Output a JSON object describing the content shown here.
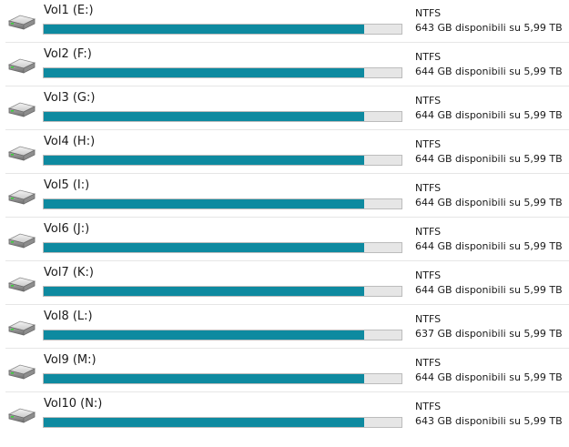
{
  "colors": {
    "bar_fill": "#0e8aa0",
    "bar_track": "#e6e6e6",
    "bar_border": "#bcbcbc"
  },
  "volumes": [
    {
      "name": "Vol1 (E:)",
      "filesystem": "NTFS",
      "space_text": "643 GB disponibili su 5,99 TB",
      "used_fraction": 0.895,
      "icon": "hard-drive-icon"
    },
    {
      "name": "Vol2 (F:)",
      "filesystem": "NTFS",
      "space_text": "644 GB disponibili su 5,99 TB",
      "used_fraction": 0.895,
      "icon": "hard-drive-icon"
    },
    {
      "name": "Vol3 (G:)",
      "filesystem": "NTFS",
      "space_text": "644 GB disponibili su 5,99 TB",
      "used_fraction": 0.895,
      "icon": "hard-drive-icon"
    },
    {
      "name": "Vol4 (H:)",
      "filesystem": "NTFS",
      "space_text": "644 GB disponibili su 5,99 TB",
      "used_fraction": 0.895,
      "icon": "hard-drive-icon"
    },
    {
      "name": "Vol5 (I:)",
      "filesystem": "NTFS",
      "space_text": "644 GB disponibili su 5,99 TB",
      "used_fraction": 0.895,
      "icon": "hard-drive-icon"
    },
    {
      "name": "Vol6 (J:)",
      "filesystem": "NTFS",
      "space_text": "644 GB disponibili su 5,99 TB",
      "used_fraction": 0.895,
      "icon": "hard-drive-icon"
    },
    {
      "name": "Vol7 (K:)",
      "filesystem": "NTFS",
      "space_text": "644 GB disponibili su 5,99 TB",
      "used_fraction": 0.895,
      "icon": "hard-drive-icon"
    },
    {
      "name": "Vol8 (L:)",
      "filesystem": "NTFS",
      "space_text": "637 GB disponibili su 5,99 TB",
      "used_fraction": 0.896,
      "icon": "hard-drive-icon"
    },
    {
      "name": "Vol9 (M:)",
      "filesystem": "NTFS",
      "space_text": "644 GB disponibili su 5,99 TB",
      "used_fraction": 0.895,
      "icon": "hard-drive-icon"
    },
    {
      "name": "Vol10 (N:)",
      "filesystem": "NTFS",
      "space_text": "643 GB disponibili su 5,99 TB",
      "used_fraction": 0.895,
      "icon": "hard-drive-icon"
    }
  ]
}
